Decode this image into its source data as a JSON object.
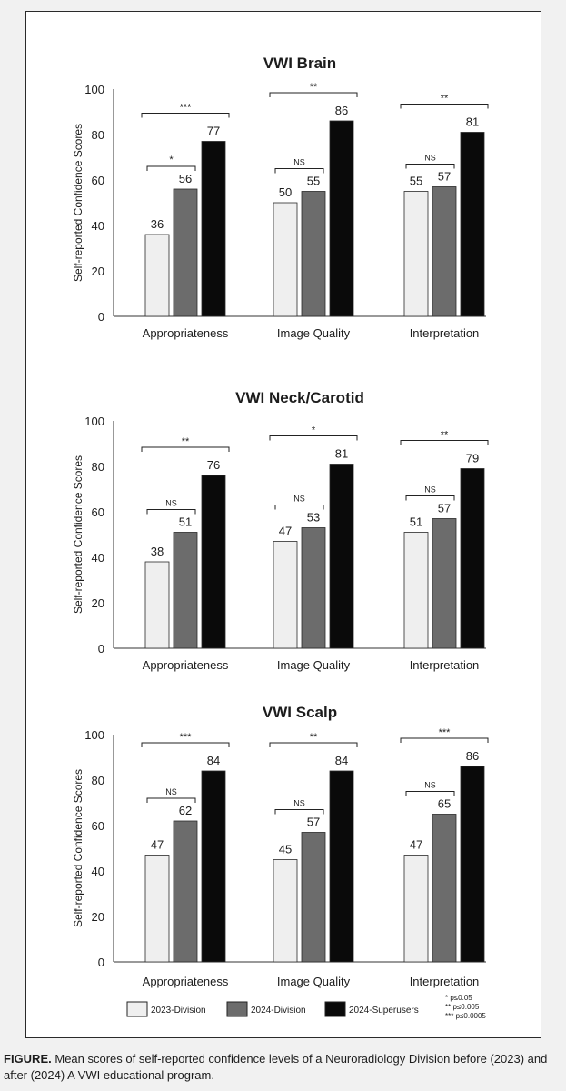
{
  "chart_data": [
    {
      "type": "bar",
      "title": "VWI Brain",
      "ylabel": "Self-reported Confidence Scores",
      "ylim": [
        0,
        100
      ],
      "yticks": [
        0,
        20,
        40,
        60,
        80,
        100
      ],
      "categories": [
        "Appropriateness",
        "Image Quality",
        "Interpretation"
      ],
      "series": [
        {
          "name": "2023-Division",
          "values": [
            36,
            50,
            55
          ]
        },
        {
          "name": "2024-Division",
          "values": [
            56,
            55,
            57
          ]
        },
        {
          "name": "2024-Superusers",
          "values": [
            77,
            86,
            81
          ]
        }
      ],
      "significance": [
        {
          "short": "*",
          "long": "***"
        },
        {
          "short": "NS",
          "long": "**"
        },
        {
          "short": "NS",
          "long": "**"
        }
      ]
    },
    {
      "type": "bar",
      "title": "VWI Neck/Carotid",
      "ylabel": "Self-reported Confidence Scores",
      "ylim": [
        0,
        100
      ],
      "yticks": [
        0,
        20,
        40,
        60,
        80,
        100
      ],
      "categories": [
        "Appropriateness",
        "Image Quality",
        "Interpretation"
      ],
      "series": [
        {
          "name": "2023-Division",
          "values": [
            38,
            47,
            51
          ]
        },
        {
          "name": "2024-Division",
          "values": [
            51,
            53,
            57
          ]
        },
        {
          "name": "2024-Superusers",
          "values": [
            76,
            81,
            79
          ]
        }
      ],
      "significance": [
        {
          "short": "NS",
          "long": "**"
        },
        {
          "short": "NS",
          "long": "*"
        },
        {
          "short": "NS",
          "long": "**"
        }
      ]
    },
    {
      "type": "bar",
      "title": "VWI Scalp",
      "ylabel": "Self-reported Confidence Scores",
      "ylim": [
        0,
        100
      ],
      "yticks": [
        0,
        20,
        40,
        60,
        80,
        100
      ],
      "categories": [
        "Appropriateness",
        "Image Quality",
        "Interpretation"
      ],
      "series": [
        {
          "name": "2023-Division",
          "values": [
            47,
            45,
            47
          ]
        },
        {
          "name": "2024-Division",
          "values": [
            62,
            57,
            65
          ]
        },
        {
          "name": "2024-Superusers",
          "values": [
            84,
            84,
            86
          ]
        }
      ],
      "significance": [
        {
          "short": "NS",
          "long": "***"
        },
        {
          "short": "NS",
          "long": "**"
        },
        {
          "short": "NS",
          "long": "***"
        }
      ]
    }
  ],
  "legend": {
    "items": [
      {
        "label": "2023-Division",
        "color": "#efefef"
      },
      {
        "label": "2024-Division",
        "color": "#6c6c6c"
      },
      {
        "label": "2024-Superusers",
        "color": "#0a0a0a"
      }
    ],
    "notes": [
      "* p≤0.05",
      "** p≤0.005",
      "*** p≤0.0005"
    ]
  },
  "caption": {
    "label": "FIGURE.",
    "text": "Mean scores of self-reported confidence levels of a Neuroradiology Division before (2023) and after (2024) A VWI educational program."
  },
  "colors": {
    "bar_2023": "#efefef",
    "bar_2024": "#6c6c6c",
    "bar_super": "#0a0a0a",
    "axis": "#333333",
    "panel_border": "#2a2a2a"
  }
}
